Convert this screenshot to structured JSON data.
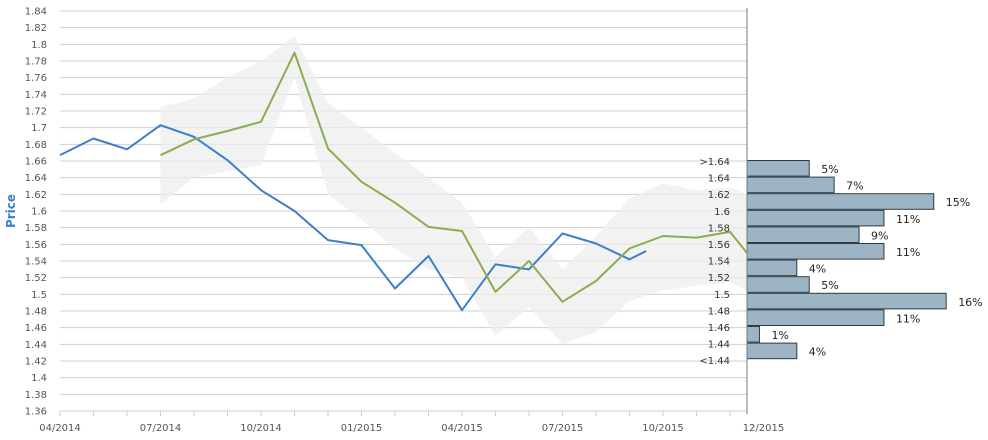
{
  "chart_data": {
    "type": "line",
    "ylabel": "Price",
    "ylim": [
      1.36,
      1.84
    ],
    "y_ticks": [
      "1.36",
      "1.38",
      "1.4",
      "1.42",
      "1.44",
      "1.46",
      "1.48",
      "1.5",
      "1.52",
      "1.54",
      "1.56",
      "1.58",
      "1.6",
      "1.62",
      "1.64",
      "1.66",
      "1.68",
      "1.7",
      "1.72",
      "1.74",
      "1.76",
      "1.78",
      "1.8",
      "1.82",
      "1.84"
    ],
    "x_tick_labels": [
      "04/2014",
      "07/2014",
      "10/2014",
      "01/2015",
      "04/2015",
      "07/2015",
      "10/2015",
      "12/2015"
    ],
    "x_range_months": [
      0,
      20.5
    ],
    "grid": true,
    "series": [
      {
        "color": "#3b7fc9",
        "points": [
          [
            "04/2014",
            1.667
          ],
          [
            "05/2014",
            1.687
          ],
          [
            "06/2014",
            1.674
          ],
          [
            "07/2014",
            1.703
          ],
          [
            "08/2014",
            1.689
          ],
          [
            "09/2014",
            1.661
          ],
          [
            "10/2014",
            1.625
          ],
          [
            "11/2014",
            1.6
          ],
          [
            "12/2014",
            1.565
          ],
          [
            "01/2015",
            1.559
          ],
          [
            "02/2015",
            1.507
          ],
          [
            "03/2015",
            1.546
          ],
          [
            "04/2015",
            1.481
          ],
          [
            "05/2015",
            1.536
          ],
          [
            "06/2015",
            1.53
          ],
          [
            "07/2015",
            1.573
          ],
          [
            "08/2015",
            1.561
          ],
          [
            "09/2015",
            1.542
          ],
          [
            "09/2015 (end)",
            1.552
          ]
        ]
      },
      {
        "color": "#8aad4e",
        "points": [
          [
            "07/2014",
            1.667
          ],
          [
            "08/2014",
            1.686
          ],
          [
            "09/2014",
            1.696
          ],
          [
            "10/2014",
            1.707
          ],
          [
            "11/2014",
            1.79
          ],
          [
            "12/2014",
            1.675
          ],
          [
            "01/2015",
            1.635
          ],
          [
            "02/2015",
            1.61
          ],
          [
            "03/2015",
            1.581
          ],
          [
            "04/2015",
            1.576
          ],
          [
            "05/2015",
            1.503
          ],
          [
            "06/2015",
            1.54
          ],
          [
            "07/2015",
            1.491
          ],
          [
            "08/2015",
            1.516
          ],
          [
            "09/2015",
            1.555
          ],
          [
            "10/2015",
            1.57
          ],
          [
            "11/2015",
            1.568
          ],
          [
            "12/2015",
            1.575
          ],
          [
            "12/2015 (end)",
            1.55
          ]
        ]
      }
    ],
    "band": {
      "color": "#eeeeee",
      "upper": [
        [
          3,
          1.725
        ],
        [
          4,
          1.735
        ],
        [
          5,
          1.76
        ],
        [
          6,
          1.78
        ],
        [
          7,
          1.81
        ],
        [
          8,
          1.73
        ],
        [
          9,
          1.7
        ],
        [
          10,
          1.67
        ],
        [
          11,
          1.64
        ],
        [
          12,
          1.61
        ],
        [
          13,
          1.545
        ],
        [
          14,
          1.58
        ],
        [
          15,
          1.53
        ],
        [
          16,
          1.57
        ],
        [
          17,
          1.615
        ],
        [
          18,
          1.633
        ],
        [
          19,
          1.625
        ],
        [
          20,
          1.628
        ],
        [
          20.5,
          1.62
        ]
      ],
      "lower": [
        [
          3,
          1.608
        ],
        [
          4,
          1.64
        ],
        [
          5,
          1.648
        ],
        [
          6,
          1.655
        ],
        [
          7,
          1.76
        ],
        [
          8,
          1.62
        ],
        [
          9,
          1.59
        ],
        [
          10,
          1.555
        ],
        [
          11,
          1.53
        ],
        [
          12,
          1.52
        ],
        [
          13,
          1.45
        ],
        [
          14,
          1.485
        ],
        [
          15,
          1.44
        ],
        [
          16,
          1.455
        ],
        [
          17,
          1.492
        ],
        [
          18,
          1.505
        ],
        [
          19,
          1.51
        ],
        [
          20,
          1.515
        ],
        [
          20.5,
          1.505
        ]
      ]
    },
    "histogram": {
      "color": "#9cb4c3",
      "bins": [
        {
          "label": ">1.64",
          "percent": "5%",
          "value": 5
        },
        {
          "label": "1.64",
          "percent": "7%",
          "value": 7
        },
        {
          "label": "1.62",
          "percent": "15%",
          "value": 15
        },
        {
          "label": "1.6",
          "percent": "11%",
          "value": 11
        },
        {
          "label": "1.58",
          "percent": "9%",
          "value": 9
        },
        {
          "label": "1.56",
          "percent": "11%",
          "value": 11
        },
        {
          "label": "1.54",
          "percent": "4%",
          "value": 4
        },
        {
          "label": "1.52",
          "percent": "5%",
          "value": 5
        },
        {
          "label": "1.5",
          "percent": "16%",
          "value": 16
        },
        {
          "label": "1.48",
          "percent": "11%",
          "value": 11
        },
        {
          "label": "1.46",
          "percent": "1%",
          "value": 1
        },
        {
          "label": "1.44",
          "percent": "4%",
          "value": 4
        },
        {
          "label": "<1.44",
          "percent": "",
          "value": 0
        }
      ]
    }
  }
}
